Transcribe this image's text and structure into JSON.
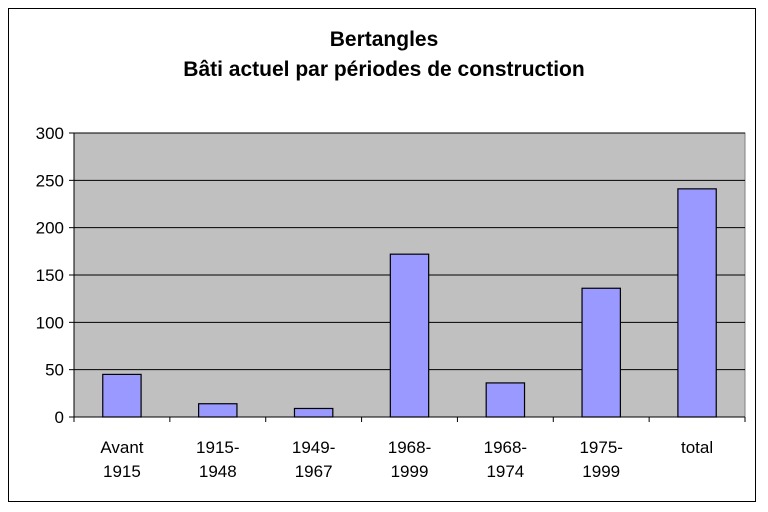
{
  "chart_data": {
    "type": "bar",
    "title": "Bertangles",
    "subtitle": "Bâti actuel par périodes de construction",
    "categories": [
      [
        "Avant",
        "1915"
      ],
      [
        "1915-",
        "1948"
      ],
      [
        "1949-",
        "1967"
      ],
      [
        "1968-",
        "1999"
      ],
      [
        "1968-",
        "1974"
      ],
      [
        "1975-",
        "1999"
      ],
      [
        "total"
      ]
    ],
    "values": [
      45,
      14,
      9,
      172,
      36,
      136,
      241
    ],
    "ylim": [
      0,
      300
    ],
    "yticks": [
      "0",
      "50",
      "100",
      "150",
      "200",
      "250",
      "300"
    ],
    "grid": true,
    "legend": "none",
    "colors": {
      "bar": "#9999ff",
      "plot_bg": "#c0c0c0",
      "grid": "#000000"
    }
  }
}
